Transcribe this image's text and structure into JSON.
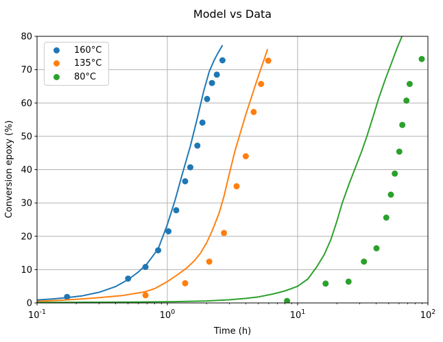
{
  "chart_data": {
    "type": "scatter",
    "title": "Model vs Data",
    "xlabel": "Time (h)",
    "ylabel": "Conversion epoxy (%)",
    "xscale": "log",
    "xlim": [
      0.1,
      100
    ],
    "ylim": [
      0,
      80
    ],
    "x_tick_exponents": [
      -1,
      0,
      1,
      2
    ],
    "x_tick_base": "10",
    "y_ticks": [
      0,
      10,
      20,
      30,
      40,
      50,
      60,
      70,
      80
    ],
    "grid": true,
    "grid_color": "#b0b0b0",
    "legend_position": "upper left",
    "series": [
      {
        "name": "160°C",
        "color": "#1f77b4",
        "data_points": [
          [
            0.17,
            1.8
          ],
          [
            0.5,
            7.3
          ],
          [
            0.68,
            10.8
          ],
          [
            0.85,
            15.8
          ],
          [
            1.02,
            21.5
          ],
          [
            1.17,
            27.8
          ],
          [
            1.37,
            36.5
          ],
          [
            1.5,
            40.7
          ],
          [
            1.7,
            47.2
          ],
          [
            1.86,
            54.1
          ],
          [
            2.02,
            61.2
          ],
          [
            2.2,
            66.0
          ],
          [
            2.4,
            68.5
          ],
          [
            2.65,
            72.8
          ]
        ],
        "model_curve": [
          [
            0.1,
            0.9
          ],
          [
            0.13,
            1.2
          ],
          [
            0.17,
            1.6
          ],
          [
            0.22,
            2.1
          ],
          [
            0.3,
            3.2
          ],
          [
            0.4,
            4.9
          ],
          [
            0.5,
            7.0
          ],
          [
            0.6,
            9.3
          ],
          [
            0.7,
            11.8
          ],
          [
            0.85,
            16.2
          ],
          [
            1.0,
            23.5
          ],
          [
            1.15,
            31.0
          ],
          [
            1.3,
            38.5
          ],
          [
            1.5,
            47.0
          ],
          [
            1.7,
            55.5
          ],
          [
            1.9,
            63.5
          ],
          [
            2.1,
            69.5
          ],
          [
            2.3,
            73.0
          ],
          [
            2.45,
            75.0
          ],
          [
            2.64,
            77.2
          ]
        ]
      },
      {
        "name": "135°C",
        "color": "#ff7f0e",
        "data_points": [
          [
            0.68,
            2.3
          ],
          [
            1.37,
            5.9
          ],
          [
            2.1,
            12.4
          ],
          [
            2.72,
            21.0
          ],
          [
            3.4,
            35.0
          ],
          [
            4.0,
            44.0
          ],
          [
            4.6,
            57.3
          ],
          [
            5.24,
            65.7
          ],
          [
            5.95,
            72.7
          ]
        ],
        "model_curve": [
          [
            0.1,
            0.5
          ],
          [
            0.15,
            0.8
          ],
          [
            0.22,
            1.2
          ],
          [
            0.3,
            1.6
          ],
          [
            0.45,
            2.2
          ],
          [
            0.6,
            3.0
          ],
          [
            0.68,
            3.4
          ],
          [
            0.8,
            4.3
          ],
          [
            1.0,
            6.4
          ],
          [
            1.2,
            8.5
          ],
          [
            1.4,
            10.4
          ],
          [
            1.6,
            12.5
          ],
          [
            1.8,
            15.0
          ],
          [
            2.0,
            18.0
          ],
          [
            2.2,
            21.5
          ],
          [
            2.5,
            27.0
          ],
          [
            2.72,
            32.0
          ],
          [
            3.0,
            39.0
          ],
          [
            3.3,
            45.5
          ],
          [
            3.6,
            50.5
          ],
          [
            4.0,
            56.5
          ],
          [
            4.4,
            61.5
          ],
          [
            4.8,
            66.0
          ],
          [
            5.2,
            70.0
          ],
          [
            5.55,
            73.2
          ],
          [
            5.87,
            76.0
          ]
        ]
      },
      {
        "name": "80°C",
        "color": "#2ca02c",
        "data_points": [
          [
            8.3,
            0.6
          ],
          [
            16.4,
            5.8
          ],
          [
            24.6,
            6.4
          ],
          [
            32.3,
            12.4
          ],
          [
            40.3,
            16.4
          ],
          [
            47.9,
            25.6
          ],
          [
            52.0,
            32.5
          ],
          [
            55.7,
            38.8
          ],
          [
            60.3,
            45.4
          ],
          [
            63.6,
            53.4
          ],
          [
            68.4,
            60.7
          ],
          [
            72.4,
            65.7
          ],
          [
            89.7,
            73.2
          ]
        ],
        "model_curve": [
          [
            0.1,
            0.15
          ],
          [
            0.5,
            0.25
          ],
          [
            1.0,
            0.35
          ],
          [
            2.0,
            0.6
          ],
          [
            3.0,
            0.95
          ],
          [
            4.0,
            1.35
          ],
          [
            5.0,
            1.8
          ],
          [
            6.5,
            2.7
          ],
          [
            8.0,
            3.6
          ],
          [
            10.0,
            5.0
          ],
          [
            12.0,
            7.2
          ],
          [
            14.0,
            10.8
          ],
          [
            16.0,
            14.5
          ],
          [
            18.0,
            19.0
          ],
          [
            20.0,
            24.5
          ],
          [
            22.0,
            30.0
          ],
          [
            25.0,
            36.0
          ],
          [
            28.0,
            41.0
          ],
          [
            31.0,
            45.5
          ],
          [
            34.0,
            50.0
          ],
          [
            38.0,
            56.0
          ],
          [
            42.0,
            61.5
          ],
          [
            47.0,
            67.0
          ],
          [
            52.0,
            71.5
          ],
          [
            58.0,
            76.5
          ],
          [
            64.0,
            80.5
          ],
          [
            68.0,
            84.0
          ]
        ]
      }
    ]
  }
}
